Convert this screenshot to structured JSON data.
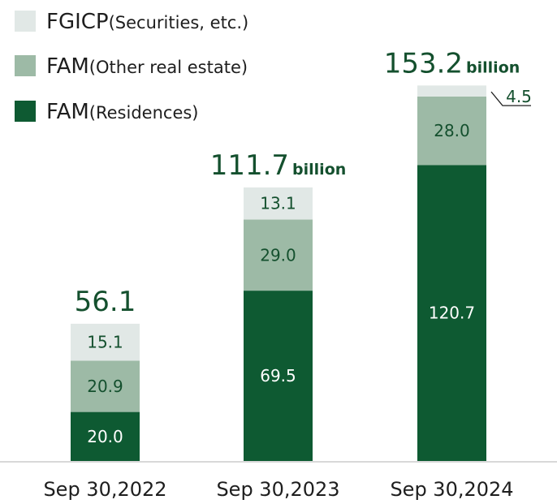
{
  "chart_data": {
    "type": "bar",
    "stacked": true,
    "categories": [
      "Sep 30,2022",
      "Sep 30,2023",
      "Sep 30,2024"
    ],
    "series": [
      {
        "name": "FAM",
        "name_note": "(Residences)",
        "values": [
          20.0,
          69.5,
          120.7
        ],
        "labels": [
          "20.0",
          "69.5",
          "120.7"
        ],
        "color": "#0e5a32",
        "label_color": "#ffffff"
      },
      {
        "name": "FAM",
        "name_note": "(Other real estate)",
        "values": [
          20.9,
          29.0,
          28.0
        ],
        "labels": [
          "20.9",
          "29.0",
          "28.0"
        ],
        "color": "#9dbaa6",
        "label_color": "#14502e"
      },
      {
        "name": "FGICP",
        "name_note": "(Securities, etc.)",
        "values": [
          15.1,
          13.1,
          4.5
        ],
        "labels": [
          "15.1",
          "13.1",
          "4.5"
        ],
        "color": "#e1e8e6",
        "label_color": "#14502e"
      }
    ],
    "totals": [
      "56.1",
      "111.7",
      "153.2"
    ],
    "total_units": [
      "",
      "billion",
      "billion"
    ],
    "legend_order": [
      2,
      1,
      0
    ],
    "legend_position": "top-left",
    "ylim": [
      0,
      160
    ],
    "grid": false,
    "colors": {
      "total_text": "#14502e",
      "axis_text": "#1e1e1e",
      "baseline": "#cccccc"
    }
  }
}
